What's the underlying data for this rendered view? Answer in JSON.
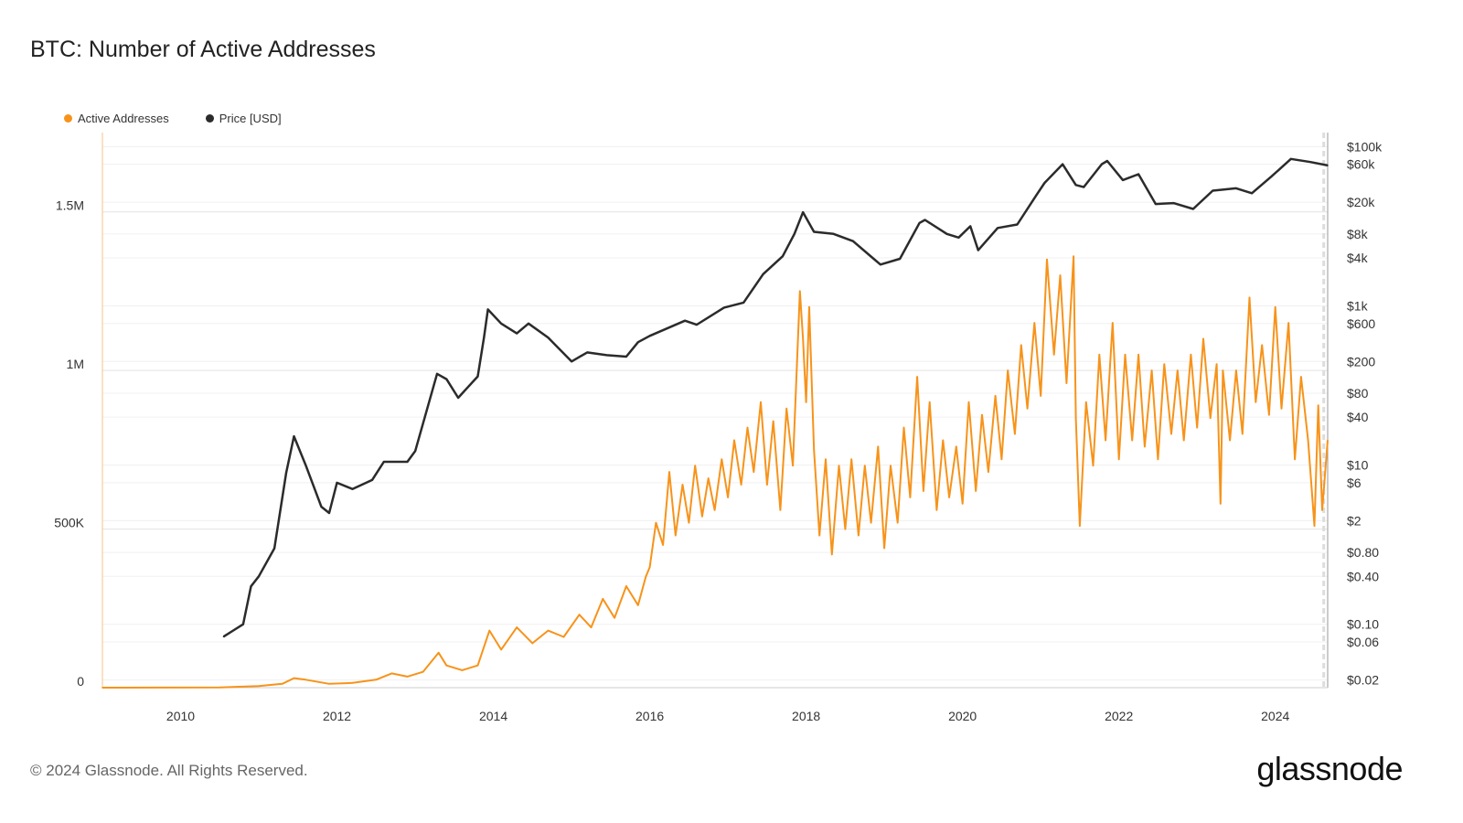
{
  "chart_data": {
    "type": "line",
    "title": "BTC: Number of Active Addresses",
    "legend_position": "top-left",
    "grid": true,
    "colors": {
      "active_addresses": "#f7931a",
      "price": "#2b2b2b"
    },
    "x_ticks": [
      "2010",
      "2012",
      "2014",
      "2016",
      "2018",
      "2020",
      "2022",
      "2024"
    ],
    "xlim": [
      2009.0,
      2024.67
    ],
    "y_left": {
      "scale": "linear",
      "ylim": [
        0,
        1750000
      ],
      "ticks": [
        0,
        500000,
        1000000,
        1500000
      ],
      "tick_labels": [
        "0",
        "500K",
        "1M",
        "1.5M"
      ]
    },
    "y_right": {
      "scale": "log",
      "ylim": [
        0.016,
        150000
      ],
      "ticks": [
        100000,
        60000,
        20000,
        8000,
        4000,
        1000,
        600,
        200,
        80,
        40,
        10,
        6,
        2,
        0.8,
        0.4,
        0.1,
        0.06,
        0.02
      ],
      "tick_labels": [
        "$100k",
        "$60k",
        "$20k",
        "$8k",
        "$4k",
        "$1k",
        "$600",
        "$200",
        "$80",
        "$40",
        "$10",
        "$6",
        "$2",
        "$0.80",
        "$0.40",
        "$0.10",
        "$0.06",
        "$0.02"
      ]
    },
    "series": [
      {
        "name": "Active Addresses",
        "axis": "left",
        "unit": "addresses (K)",
        "points": [
          [
            2009.0,
            0.1
          ],
          [
            2010.5,
            1
          ],
          [
            2011.0,
            5
          ],
          [
            2011.3,
            12
          ],
          [
            2011.45,
            30
          ],
          [
            2011.6,
            25
          ],
          [
            2011.9,
            12
          ],
          [
            2012.2,
            15
          ],
          [
            2012.5,
            25
          ],
          [
            2012.7,
            45
          ],
          [
            2012.9,
            35
          ],
          [
            2013.1,
            50
          ],
          [
            2013.3,
            110
          ],
          [
            2013.4,
            70
          ],
          [
            2013.6,
            55
          ],
          [
            2013.8,
            70
          ],
          [
            2013.95,
            180
          ],
          [
            2014.1,
            120
          ],
          [
            2014.3,
            190
          ],
          [
            2014.5,
            140
          ],
          [
            2014.7,
            180
          ],
          [
            2014.9,
            160
          ],
          [
            2015.1,
            230
          ],
          [
            2015.25,
            190
          ],
          [
            2015.4,
            280
          ],
          [
            2015.55,
            220
          ],
          [
            2015.7,
            320
          ],
          [
            2015.85,
            260
          ],
          [
            2015.95,
            350
          ],
          [
            2016.0,
            380
          ],
          [
            2016.08,
            520
          ],
          [
            2016.17,
            450
          ],
          [
            2016.25,
            680
          ],
          [
            2016.33,
            480
          ],
          [
            2016.42,
            640
          ],
          [
            2016.5,
            520
          ],
          [
            2016.58,
            700
          ],
          [
            2016.67,
            540
          ],
          [
            2016.75,
            660
          ],
          [
            2016.83,
            560
          ],
          [
            2016.92,
            720
          ],
          [
            2017.0,
            600
          ],
          [
            2017.08,
            780
          ],
          [
            2017.17,
            640
          ],
          [
            2017.25,
            820
          ],
          [
            2017.33,
            680
          ],
          [
            2017.42,
            900
          ],
          [
            2017.5,
            640
          ],
          [
            2017.58,
            840
          ],
          [
            2017.67,
            560
          ],
          [
            2017.75,
            880
          ],
          [
            2017.83,
            700
          ],
          [
            2017.92,
            1250
          ],
          [
            2017.96,
            1100
          ],
          [
            2018.0,
            900
          ],
          [
            2018.04,
            1200
          ],
          [
            2018.1,
            750
          ],
          [
            2018.17,
            480
          ],
          [
            2018.25,
            720
          ],
          [
            2018.33,
            420
          ],
          [
            2018.42,
            700
          ],
          [
            2018.5,
            500
          ],
          [
            2018.58,
            720
          ],
          [
            2018.67,
            480
          ],
          [
            2018.75,
            700
          ],
          [
            2018.83,
            520
          ],
          [
            2018.92,
            760
          ],
          [
            2019.0,
            440
          ],
          [
            2019.08,
            700
          ],
          [
            2019.17,
            520
          ],
          [
            2019.25,
            820
          ],
          [
            2019.33,
            600
          ],
          [
            2019.42,
            980
          ],
          [
            2019.5,
            620
          ],
          [
            2019.58,
            900
          ],
          [
            2019.67,
            560
          ],
          [
            2019.75,
            780
          ],
          [
            2019.83,
            600
          ],
          [
            2019.92,
            760
          ],
          [
            2020.0,
            580
          ],
          [
            2020.08,
            900
          ],
          [
            2020.17,
            620
          ],
          [
            2020.25,
            860
          ],
          [
            2020.33,
            680
          ],
          [
            2020.42,
            920
          ],
          [
            2020.5,
            720
          ],
          [
            2020.58,
            1000
          ],
          [
            2020.67,
            800
          ],
          [
            2020.75,
            1080
          ],
          [
            2020.83,
            880
          ],
          [
            2020.92,
            1150
          ],
          [
            2021.0,
            920
          ],
          [
            2021.08,
            1350
          ],
          [
            2021.17,
            1050
          ],
          [
            2021.25,
            1300
          ],
          [
            2021.33,
            960
          ],
          [
            2021.42,
            1360
          ],
          [
            2021.45,
            850
          ],
          [
            2021.5,
            510
          ],
          [
            2021.58,
            900
          ],
          [
            2021.67,
            700
          ],
          [
            2021.75,
            1050
          ],
          [
            2021.83,
            780
          ],
          [
            2021.92,
            1150
          ],
          [
            2022.0,
            720
          ],
          [
            2022.08,
            1050
          ],
          [
            2022.17,
            780
          ],
          [
            2022.25,
            1050
          ],
          [
            2022.33,
            760
          ],
          [
            2022.42,
            1000
          ],
          [
            2022.5,
            720
          ],
          [
            2022.58,
            1020
          ],
          [
            2022.67,
            800
          ],
          [
            2022.75,
            1000
          ],
          [
            2022.83,
            780
          ],
          [
            2022.92,
            1050
          ],
          [
            2023.0,
            820
          ],
          [
            2023.08,
            1100
          ],
          [
            2023.17,
            850
          ],
          [
            2023.25,
            1020
          ],
          [
            2023.3,
            580
          ],
          [
            2023.33,
            1000
          ],
          [
            2023.42,
            780
          ],
          [
            2023.5,
            1000
          ],
          [
            2023.58,
            800
          ],
          [
            2023.67,
            1230
          ],
          [
            2023.75,
            900
          ],
          [
            2023.83,
            1080
          ],
          [
            2023.92,
            860
          ],
          [
            2024.0,
            1200
          ],
          [
            2024.08,
            880
          ],
          [
            2024.17,
            1150
          ],
          [
            2024.25,
            720
          ],
          [
            2024.33,
            980
          ],
          [
            2024.42,
            780
          ],
          [
            2024.5,
            510
          ],
          [
            2024.55,
            890
          ],
          [
            2024.6,
            560
          ],
          [
            2024.67,
            780
          ]
        ]
      },
      {
        "name": "Price [USD]",
        "axis": "right",
        "unit": "USD",
        "points": [
          [
            2010.55,
            0.07
          ],
          [
            2010.8,
            0.1
          ],
          [
            2010.9,
            0.3
          ],
          [
            2011.0,
            0.4
          ],
          [
            2011.2,
            0.9
          ],
          [
            2011.35,
            8
          ],
          [
            2011.45,
            23
          ],
          [
            2011.6,
            10
          ],
          [
            2011.8,
            3
          ],
          [
            2011.9,
            2.5
          ],
          [
            2012.0,
            6
          ],
          [
            2012.2,
            5
          ],
          [
            2012.45,
            6.5
          ],
          [
            2012.6,
            11
          ],
          [
            2012.9,
            11
          ],
          [
            2013.0,
            15
          ],
          [
            2013.28,
            140
          ],
          [
            2013.4,
            120
          ],
          [
            2013.55,
            70
          ],
          [
            2013.8,
            130
          ],
          [
            2013.88,
            400
          ],
          [
            2013.93,
            900
          ],
          [
            2014.1,
            600
          ],
          [
            2014.3,
            450
          ],
          [
            2014.45,
            600
          ],
          [
            2014.7,
            400
          ],
          [
            2015.0,
            200
          ],
          [
            2015.2,
            260
          ],
          [
            2015.45,
            240
          ],
          [
            2015.7,
            230
          ],
          [
            2015.85,
            350
          ],
          [
            2016.0,
            420
          ],
          [
            2016.45,
            650
          ],
          [
            2016.6,
            580
          ],
          [
            2016.95,
            950
          ],
          [
            2017.2,
            1100
          ],
          [
            2017.45,
            2500
          ],
          [
            2017.7,
            4200
          ],
          [
            2017.85,
            8000
          ],
          [
            2017.96,
            15000
          ],
          [
            2018.1,
            8500
          ],
          [
            2018.35,
            8000
          ],
          [
            2018.6,
            6500
          ],
          [
            2018.85,
            4000
          ],
          [
            2018.95,
            3300
          ],
          [
            2019.2,
            3900
          ],
          [
            2019.45,
            11000
          ],
          [
            2019.52,
            12000
          ],
          [
            2019.8,
            8000
          ],
          [
            2019.95,
            7200
          ],
          [
            2020.1,
            10000
          ],
          [
            2020.2,
            5000
          ],
          [
            2020.45,
            9500
          ],
          [
            2020.7,
            10500
          ],
          [
            2020.95,
            25000
          ],
          [
            2021.05,
            35000
          ],
          [
            2021.28,
            60000
          ],
          [
            2021.45,
            33000
          ],
          [
            2021.55,
            31000
          ],
          [
            2021.78,
            60000
          ],
          [
            2021.85,
            66000
          ],
          [
            2022.05,
            38000
          ],
          [
            2022.25,
            45000
          ],
          [
            2022.47,
            19000
          ],
          [
            2022.7,
            19500
          ],
          [
            2022.95,
            16500
          ],
          [
            2023.2,
            28000
          ],
          [
            2023.5,
            30000
          ],
          [
            2023.7,
            26000
          ],
          [
            2023.95,
            42000
          ],
          [
            2024.2,
            70000
          ],
          [
            2024.45,
            64000
          ],
          [
            2024.67,
            58000
          ]
        ]
      }
    ]
  },
  "legend": [
    {
      "label": "Active Addresses"
    },
    {
      "label": "Price [USD]"
    }
  ],
  "footer": {
    "copyright": "© 2024 Glassnode. All Rights Reserved."
  },
  "logo": {
    "text": "glassnode"
  }
}
